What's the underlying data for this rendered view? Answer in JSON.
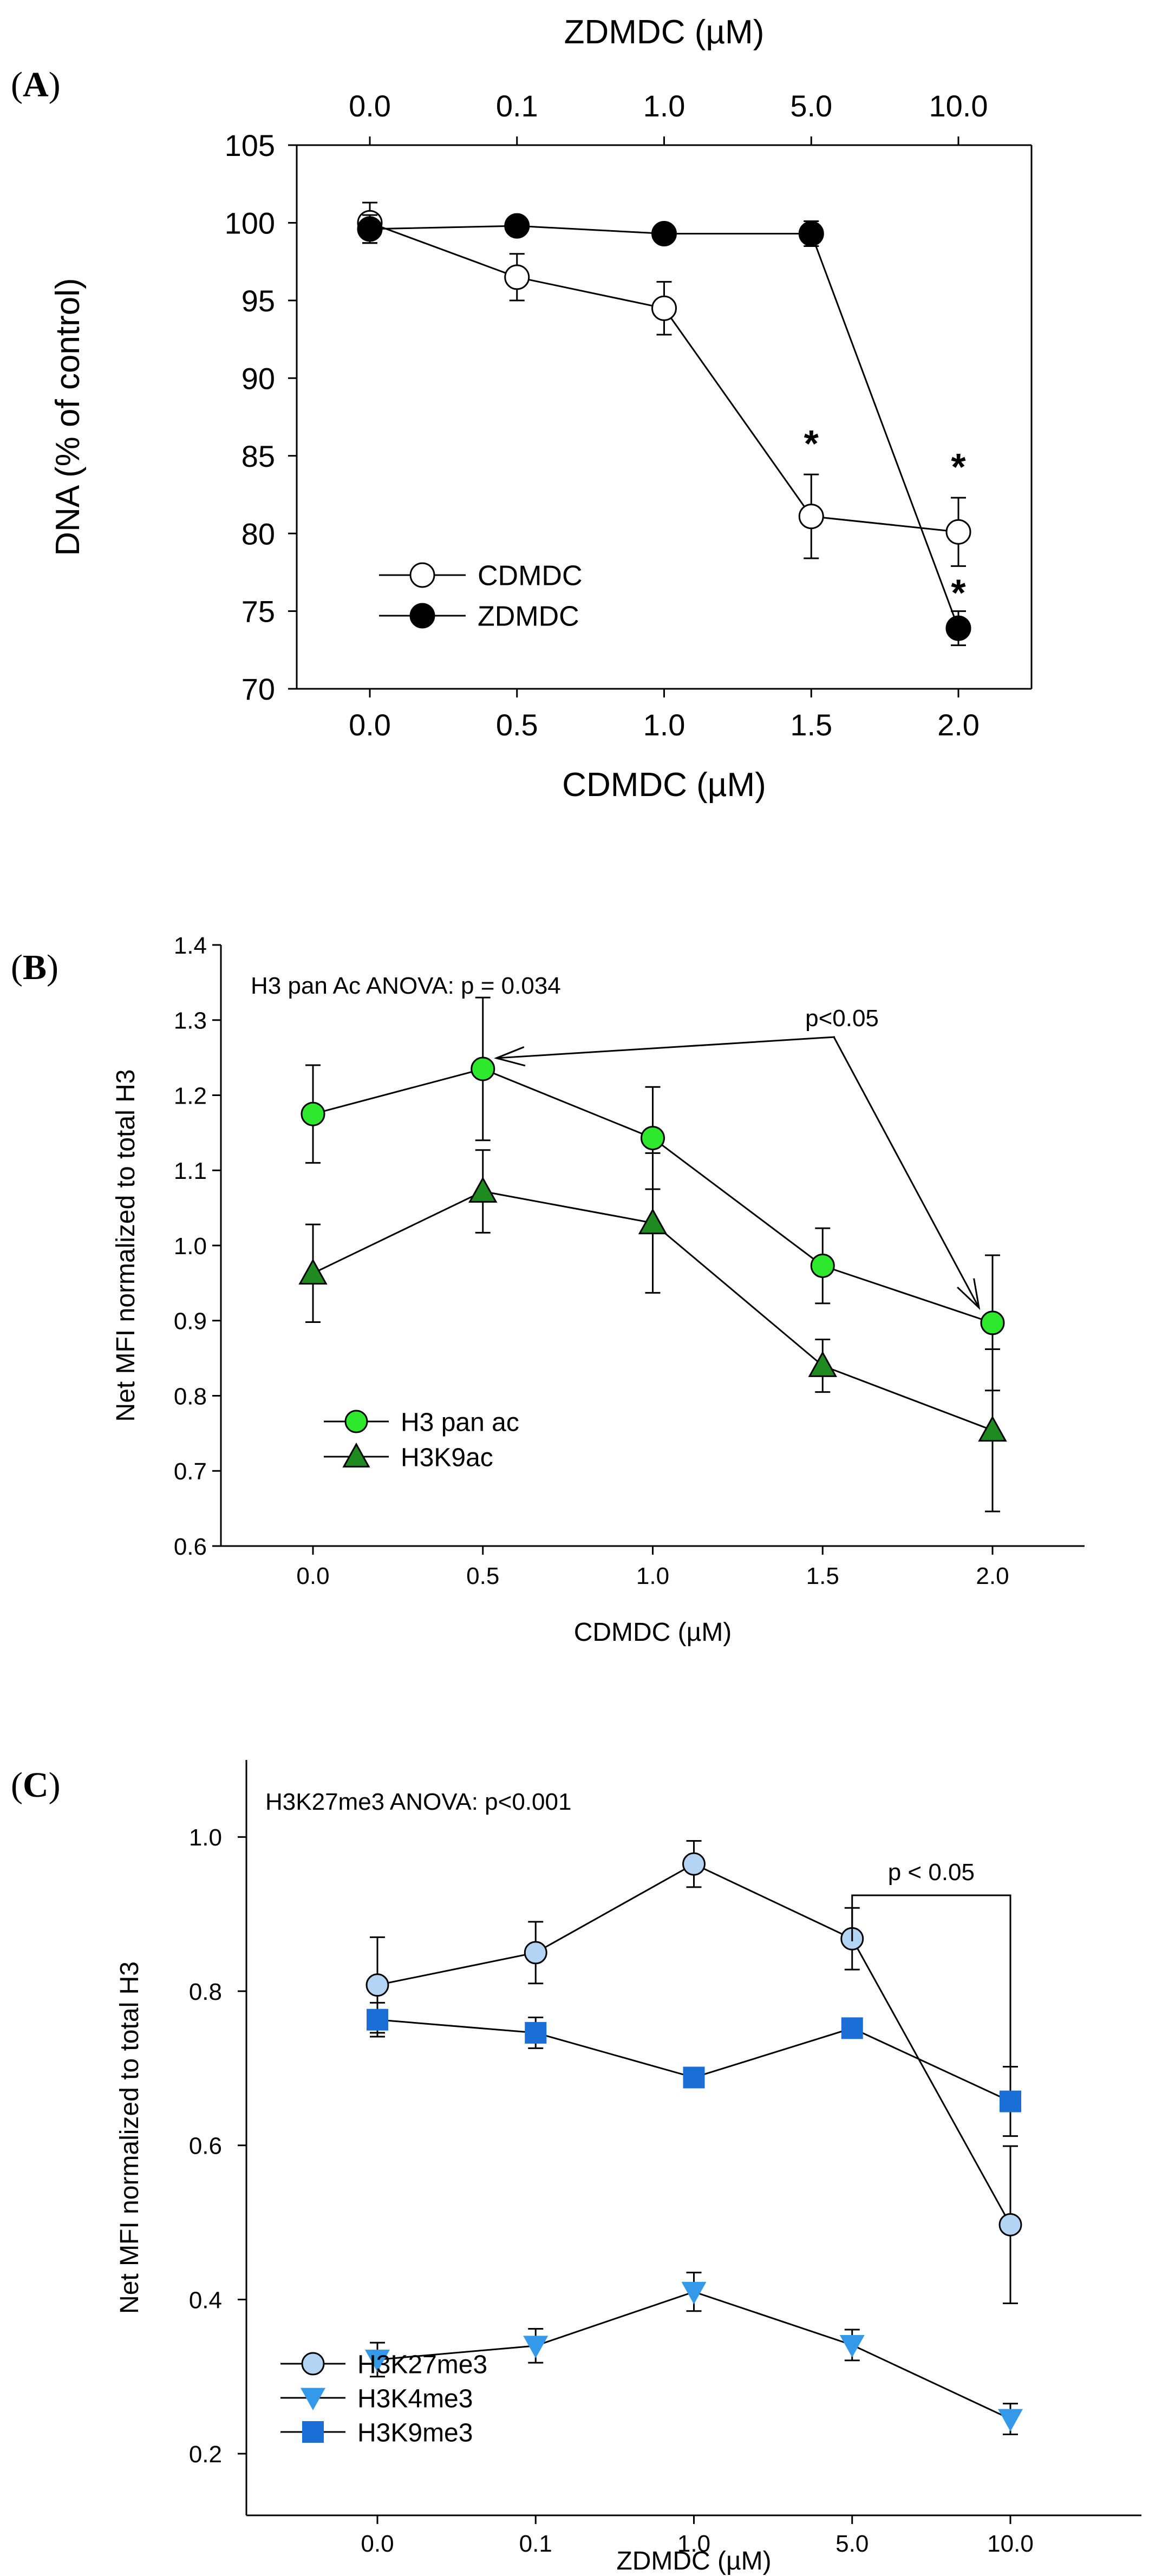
{
  "chart_data": [
    {
      "panel": "(A)",
      "type": "line",
      "xlabel": "CDMDC (µM)",
      "ylabel": "DNA (% of control)",
      "top_xlabel": "ZDMDC (µM)",
      "x": [
        0.0,
        0.5,
        1.0,
        1.5,
        2.0
      ],
      "x_tick_labels": [
        "0.0",
        "0.5",
        "1.0",
        "1.5",
        "2.0"
      ],
      "top_x_tick_labels": [
        "0.0",
        "0.1",
        "1.0",
        "5.0",
        "10.0"
      ],
      "ylim": [
        70,
        105
      ],
      "y_ticks": [
        70,
        75,
        80,
        85,
        90,
        95,
        100,
        105
      ],
      "legend_position": "bottom-left",
      "series": [
        {
          "name": "CDMDC",
          "marker": "circle",
          "fill": "#ffffff",
          "values": [
            100.0,
            96.5,
            94.5,
            81.1,
            80.1
          ],
          "errors": [
            1.3,
            1.5,
            1.7,
            2.7,
            2.2
          ]
        },
        {
          "name": "ZDMDC",
          "marker": "circle",
          "fill": "#000000",
          "values": [
            99.6,
            99.8,
            99.3,
            99.3,
            73.9
          ],
          "errors": [
            0.9,
            0.4,
            0.3,
            0.8,
            1.1
          ]
        }
      ],
      "annotations": [
        {
          "text": "*",
          "x": 1.5,
          "y": 86.0
        },
        {
          "text": "*",
          "x": 2.0,
          "y": 84.5
        },
        {
          "text": "*",
          "x": 2.0,
          "y": 76.4
        }
      ]
    },
    {
      "panel": "(B)",
      "type": "line",
      "xlabel": "CDMDC (µM)",
      "ylabel": "Net MFI normalized to total H3",
      "x": [
        0.0,
        0.5,
        1.0,
        1.5,
        2.0
      ],
      "x_tick_labels": [
        "0.0",
        "0.5",
        "1.0",
        "1.5",
        "2.0"
      ],
      "ylim": [
        0.6,
        1.4
      ],
      "y_ticks": [
        "0.6",
        "0.7",
        "0.8",
        "0.9",
        "1.0",
        "1.1",
        "1.2",
        "1.3",
        "1.4"
      ],
      "legend_position": "bottom-left",
      "stat_text": "H3 pan Ac ANOVA: p = 0.034",
      "sig_text": "p<0.05",
      "series": [
        {
          "name": "H3 pan ac",
          "marker": "circle",
          "fill": "#2ee82e",
          "values": [
            1.175,
            1.235,
            1.143,
            0.973,
            0.897
          ],
          "errors": [
            0.065,
            0.095,
            0.068,
            0.05,
            0.09
          ]
        },
        {
          "name": "H3K9ac",
          "marker": "triangle",
          "fill": "#1f8a1f",
          "values": [
            0.963,
            1.072,
            1.03,
            0.84,
            0.754
          ],
          "errors": [
            0.065,
            0.055,
            0.093,
            0.035,
            0.108
          ]
        }
      ]
    },
    {
      "panel": "(C)",
      "type": "line",
      "xlabel": "ZDMDC (µM)",
      "ylabel": "Net MFI normalized to total H3",
      "x_tick_labels": [
        "0.0",
        "0.1",
        "1.0",
        "5.0",
        "10.0"
      ],
      "ylim": [
        0.12,
        1.1
      ],
      "y_ticks": [
        "0.2",
        "0.4",
        "0.6",
        "0.8",
        "1.0"
      ],
      "legend_position": "bottom-left",
      "stat_text": "H3K27me3 ANOVA: p<0.001",
      "sig_text": "p < 0.05",
      "series": [
        {
          "name": "H3K27me3",
          "marker": "circle",
          "fill": "#b3d4f2",
          "values": [
            0.808,
            0.85,
            0.965,
            0.868,
            0.497
          ],
          "errors": [
            0.062,
            0.04,
            0.03,
            0.04,
            0.102
          ]
        },
        {
          "name": "H3K4me3",
          "marker": "triangle-down",
          "fill": "#3399e8",
          "values": [
            0.322,
            0.34,
            0.41,
            0.341,
            0.245
          ],
          "errors": [
            0.022,
            0.022,
            0.025,
            0.02,
            0.02
          ]
        },
        {
          "name": "H3K9me3",
          "marker": "square",
          "fill": "#1a6fd6",
          "values": [
            0.763,
            0.746,
            0.688,
            0.752,
            0.657
          ],
          "errors": [
            0.022,
            0.02,
            0.008,
            0.01,
            0.045
          ]
        }
      ]
    }
  ]
}
